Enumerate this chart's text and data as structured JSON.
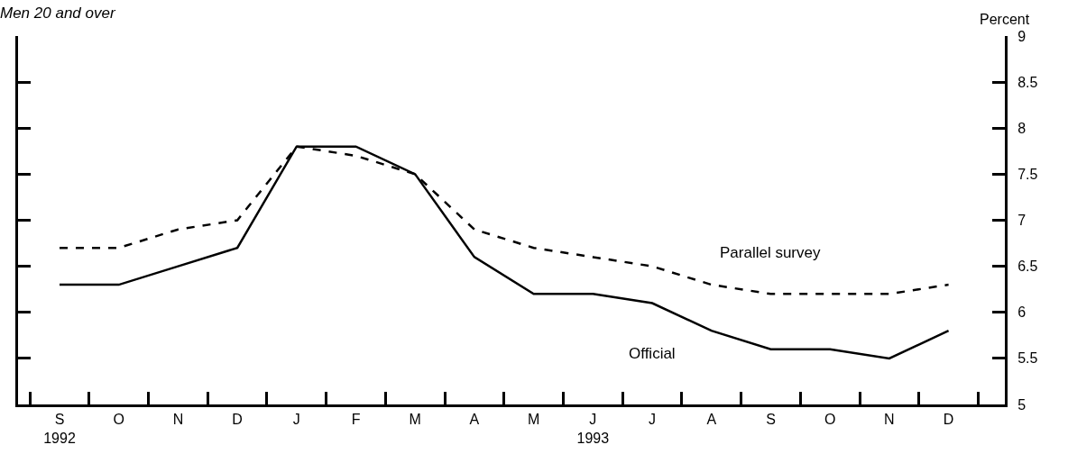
{
  "chart_data": {
    "type": "line",
    "title": "Men 20 and over",
    "ylabel": "Percent",
    "categories": [
      "S\n1992",
      "O",
      "N",
      "D",
      "J",
      "F",
      "M",
      "A",
      "M",
      "J\n1993",
      "J",
      "A",
      "S",
      "O",
      "N",
      "D"
    ],
    "series": [
      {
        "name": "Official",
        "color": "#000000",
        "line_style": "solid",
        "values": [
          6.3,
          6.3,
          6.5,
          6.7,
          7.8,
          7.8,
          7.5,
          6.6,
          6.2,
          6.2,
          6.1,
          5.8,
          5.6,
          5.6,
          5.5,
          5.8
        ]
      },
      {
        "name": "Parallel survey",
        "color": "#000000",
        "line_style": "dashed",
        "values": [
          6.7,
          6.7,
          6.9,
          7.0,
          7.8,
          7.7,
          7.5,
          6.9,
          6.7,
          6.6,
          6.5,
          6.3,
          6.2,
          6.2,
          6.2,
          6.3
        ]
      }
    ],
    "ylim": [
      5,
      9
    ],
    "yticks": [
      5,
      5.5,
      6,
      6.5,
      7,
      7.5,
      8,
      8.5,
      9
    ],
    "legend": false,
    "marker": "none"
  }
}
